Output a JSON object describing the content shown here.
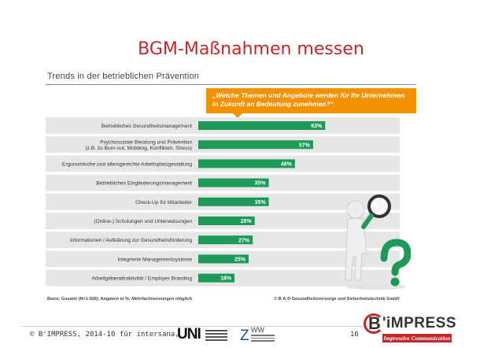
{
  "slide": {
    "title": "BGM-Maßnahmen messen"
  },
  "panel": {
    "heading": "Trends in der betrieblichen Prävention",
    "question": "„Welche Themen und Angebote werden für Ihr Unternehmen in Zukunft an Bedeutung zunehmen?“",
    "footnote_left": "Basis: Gesamt (N=1.506); Angaben in %; Mehrfachnennungen möglich",
    "footnote_right": "© B·A·D Gesundheitsvorsorge und Sicherheitstechnik GmbH"
  },
  "footer": {
    "copyright": "© B'IMPRESS, 2014-10 für intersana,",
    "page_number": "16",
    "impress_logo_word": "'iMPRESS",
    "impress_logo_b": "B",
    "impress_tagline": "Impressive Communication",
    "uni_logo_mark": "UNI",
    "zww_logo_mark": "Z",
    "zww_logo_w": "WW"
  },
  "colors": {
    "title": "#c0282a",
    "bar": "#1d9a57",
    "question_box": "#f39200",
    "row_band_dark": "#e6e6e6",
    "row_band_light": "#f2f2f2",
    "brand_red": "#c0282a"
  },
  "illustration": {
    "name": "3d-figure-with-magnifier-and-question-mark-icon",
    "question_mark_color": "#1d9a57"
  },
  "chart_data": {
    "type": "bar",
    "orientation": "horizontal",
    "title": "Trends in der betrieblichen Prävention",
    "categories": [
      "Betriebliches Gesundheitsmanagement",
      "Psychosoziale Beratung und Prävention\n(z.B. zu Burn-out, Mobbing, Konflikten, Stress)",
      "Ergonomische und altersgerechte Arbeitsplatzgestaltung",
      "Betriebliches Eingliederungsmanagement",
      "Check-Up für Mitarbeiter",
      "(Online-) Schulungen und Unterweisungen",
      "Informationen / Aufklärung zur Gesundheitsförderung",
      "Integrierte Managementsysteme",
      "Arbeitgeberattraktivität / Employer Branding"
    ],
    "values": [
      63,
      57,
      48,
      35,
      35,
      28,
      27,
      25,
      18
    ],
    "value_labels": [
      "63%",
      "57%",
      "48%",
      "35%",
      "35%",
      "28%",
      "27%",
      "25%",
      "18%"
    ],
    "unit": "%",
    "xlim": [
      0,
      100
    ],
    "grid": false,
    "legend": "none"
  }
}
